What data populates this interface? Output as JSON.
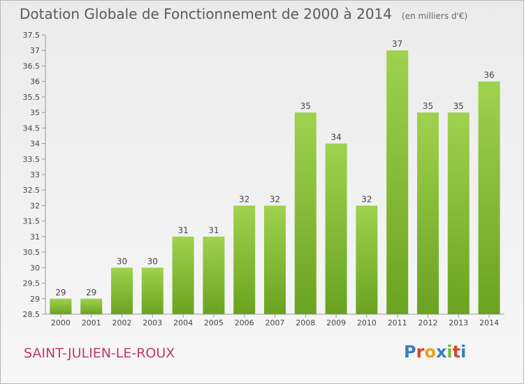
{
  "header": {
    "title": "Dotation Globale de Fonctionnement de 2000 à 2014",
    "unit": "(en milliers d'€)"
  },
  "footer": {
    "commune": "SAINT-JULIEN-LE-ROUX"
  },
  "logo": {
    "letters": [
      "P",
      "r",
      "o",
      "x",
      "i",
      "t",
      "i"
    ],
    "colors": [
      "#3a7cc5",
      "#d9452b",
      "#e8a317",
      "#3a7cc5",
      "#79b53a",
      "#d9452b",
      "#3a7cc5"
    ]
  },
  "chart_data": {
    "type": "bar",
    "title": "Dotation Globale de Fonctionnement de 2000 à 2014",
    "categories": [
      "2000",
      "2001",
      "2002",
      "2003",
      "2004",
      "2005",
      "2006",
      "2007",
      "2008",
      "2009",
      "2010",
      "2011",
      "2012",
      "2013",
      "2014"
    ],
    "values": [
      29,
      29,
      30,
      30,
      31,
      31,
      32,
      32,
      35,
      34,
      32,
      37,
      35,
      35,
      36
    ],
    "ylim": [
      28.5,
      37.5
    ],
    "yticks": [
      "28.5",
      "29",
      "29.5",
      "30",
      "30.5",
      "31",
      "31.5",
      "32",
      "32.5",
      "33",
      "33.5",
      "34",
      "34.5",
      "35",
      "35.5",
      "36",
      "36.5",
      "37",
      "37.5"
    ],
    "grid": false,
    "bar_color_top": "#9fd24e",
    "bar_color_bottom": "#6aa320"
  }
}
